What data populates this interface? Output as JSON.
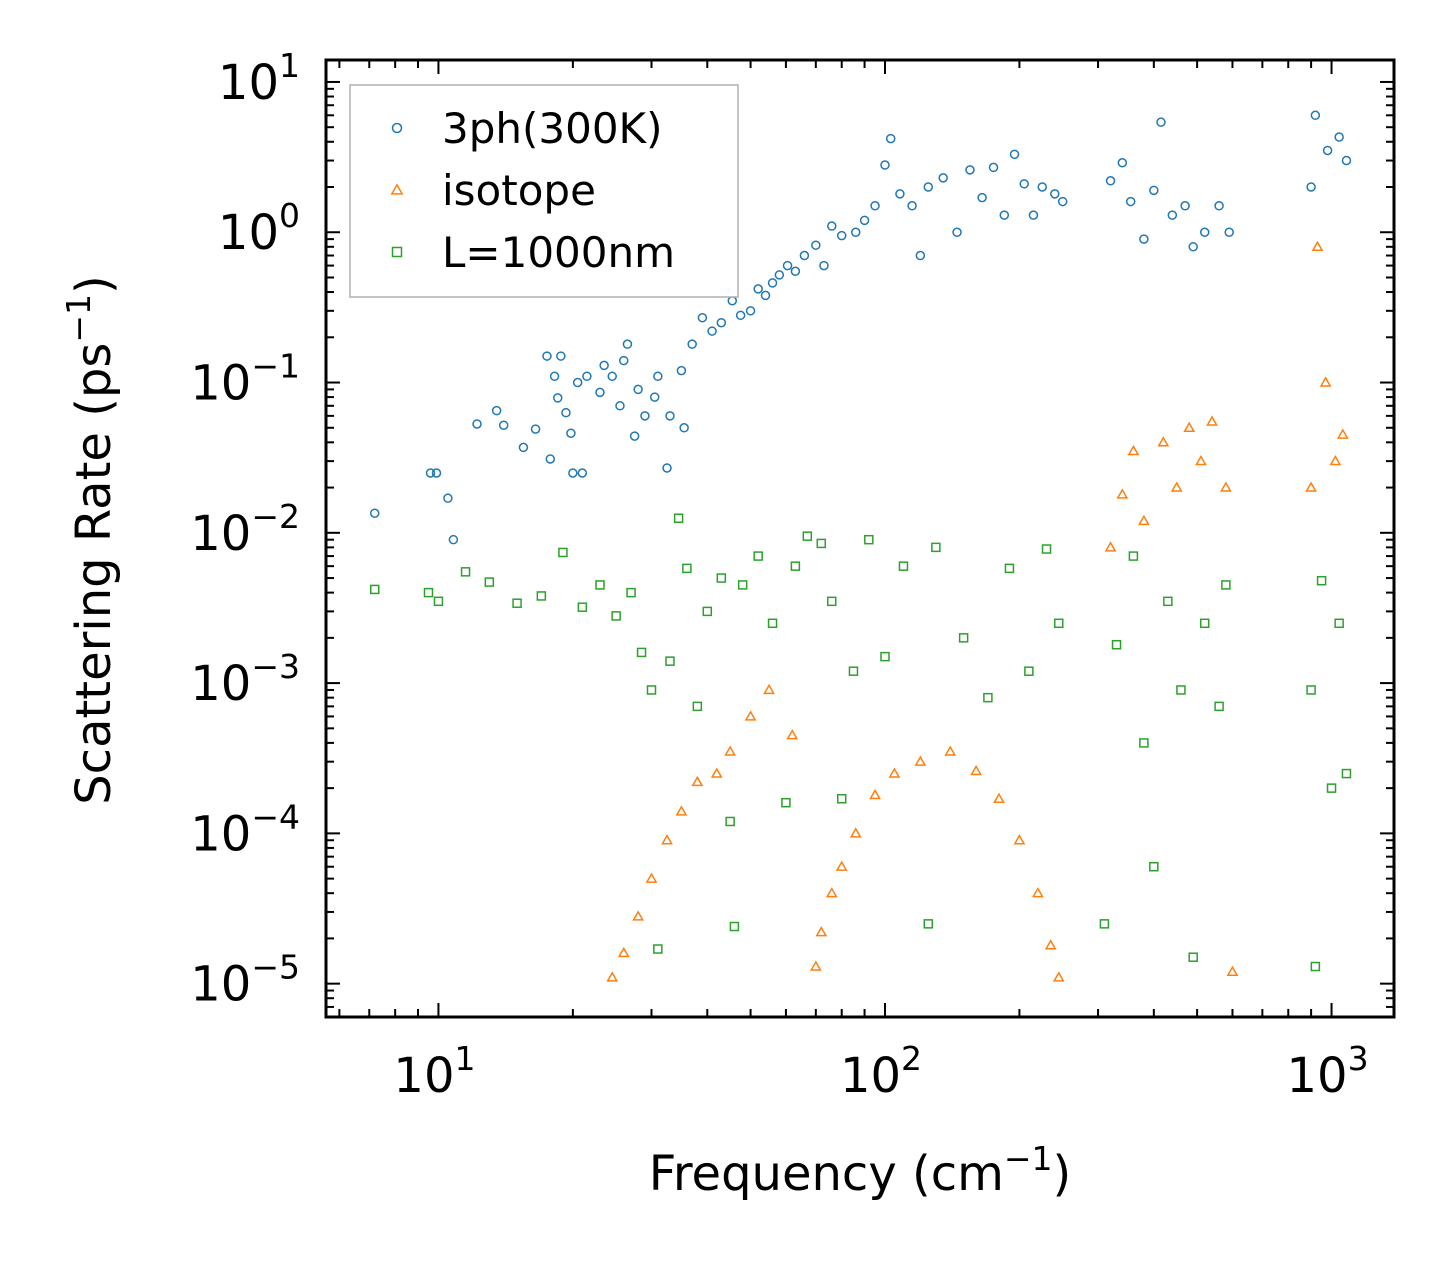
{
  "chart_data": {
    "type": "scatter",
    "xscale": "log",
    "yscale": "log",
    "xlim": [
      5.6,
      1380
    ],
    "ylim": [
      6e-06,
      14
    ],
    "xlabel": "Frequency (cm",
    "xlabel_sup": "−1",
    "xlabel_end": ")",
    "ylabel": "Scattering Rate (ps",
    "ylabel_sup": "−1",
    "ylabel_end": ")",
    "legend_position": "top-left",
    "x_ticks": [
      {
        "value": 10,
        "base": "10",
        "exp": "1"
      },
      {
        "value": 100,
        "base": "10",
        "exp": "2"
      },
      {
        "value": 1000,
        "base": "10",
        "exp": "3"
      }
    ],
    "y_ticks": [
      {
        "value": 10,
        "base": "10",
        "exp": "1"
      },
      {
        "value": 1,
        "base": "10",
        "exp": "0"
      },
      {
        "value": 0.1,
        "base": "10",
        "exp": "−1"
      },
      {
        "value": 0.01,
        "base": "10",
        "exp": "−2"
      },
      {
        "value": 0.001,
        "base": "10",
        "exp": "−3"
      },
      {
        "value": 0.0001,
        "base": "10",
        "exp": "−4"
      },
      {
        "value": 1e-05,
        "base": "10",
        "exp": "−5"
      }
    ],
    "series": [
      {
        "name": "3ph(300K)",
        "marker": "circle",
        "color": "#1f77b4",
        "points": [
          [
            7.2,
            0.0135
          ],
          [
            9.6,
            0.025
          ],
          [
            9.9,
            0.025
          ],
          [
            10.5,
            0.017
          ],
          [
            10.8,
            0.009
          ],
          [
            12.2,
            0.053
          ],
          [
            13.5,
            0.065
          ],
          [
            14.0,
            0.052
          ],
          [
            15.5,
            0.037
          ],
          [
            16.5,
            0.049
          ],
          [
            17.5,
            0.15
          ],
          [
            17.8,
            0.031
          ],
          [
            18.2,
            0.11
          ],
          [
            18.5,
            0.079
          ],
          [
            18.8,
            0.15
          ],
          [
            19.3,
            0.063
          ],
          [
            19.8,
            0.046
          ],
          [
            20.0,
            0.025
          ],
          [
            20.5,
            0.1
          ],
          [
            21.0,
            0.025
          ],
          [
            21.5,
            0.11
          ],
          [
            23.0,
            0.086
          ],
          [
            23.5,
            0.13
          ],
          [
            24.5,
            0.11
          ],
          [
            25.5,
            0.07
          ],
          [
            26.0,
            0.14
          ],
          [
            26.5,
            0.18
          ],
          [
            27.5,
            0.044
          ],
          [
            28.0,
            0.09
          ],
          [
            29.0,
            0.06
          ],
          [
            30.5,
            0.08
          ],
          [
            31.0,
            0.11
          ],
          [
            32.5,
            0.027
          ],
          [
            33.0,
            0.06
          ],
          [
            35.0,
            0.12
          ],
          [
            35.5,
            0.05
          ],
          [
            37.0,
            0.18
          ],
          [
            39.0,
            0.27
          ],
          [
            41.0,
            0.22
          ],
          [
            43.0,
            0.25
          ],
          [
            45.5,
            0.35
          ],
          [
            47.5,
            0.28
          ],
          [
            50.0,
            0.3
          ],
          [
            52.0,
            0.42
          ],
          [
            54.0,
            0.38
          ],
          [
            56.0,
            0.46
          ],
          [
            58.0,
            0.52
          ],
          [
            60.5,
            0.6
          ],
          [
            63.0,
            0.55
          ],
          [
            66.0,
            0.7
          ],
          [
            70.0,
            0.82
          ],
          [
            73.0,
            0.6
          ],
          [
            76.0,
            1.1
          ],
          [
            80.0,
            0.95
          ],
          [
            86.0,
            1.0
          ],
          [
            90.0,
            1.2
          ],
          [
            95.0,
            1.5
          ],
          [
            100.0,
            2.8
          ],
          [
            103.0,
            4.2
          ],
          [
            108.0,
            1.8
          ],
          [
            115.0,
            1.5
          ],
          [
            120.0,
            0.7
          ],
          [
            125.0,
            2.0
          ],
          [
            135.0,
            2.3
          ],
          [
            145.0,
            1.0
          ],
          [
            155.0,
            2.6
          ],
          [
            165.0,
            1.7
          ],
          [
            175.0,
            2.7
          ],
          [
            185.0,
            1.3
          ],
          [
            195.0,
            3.3
          ],
          [
            205.0,
            2.1
          ],
          [
            215.0,
            1.3
          ],
          [
            225.0,
            2.0
          ],
          [
            240.0,
            1.8
          ],
          [
            250.0,
            1.6
          ],
          [
            320.0,
            2.2
          ],
          [
            340.0,
            2.9
          ],
          [
            355.0,
            1.6
          ],
          [
            380.0,
            0.9
          ],
          [
            400.0,
            1.9
          ],
          [
            415.0,
            5.4
          ],
          [
            440.0,
            1.3
          ],
          [
            470.0,
            1.5
          ],
          [
            490.0,
            0.8
          ],
          [
            520.0,
            1.0
          ],
          [
            560.0,
            1.5
          ],
          [
            590.0,
            1.0
          ],
          [
            900.0,
            2.0
          ],
          [
            920.0,
            6.0
          ],
          [
            980.0,
            3.5
          ],
          [
            1040.0,
            4.3
          ],
          [
            1080.0,
            3.0
          ]
        ]
      },
      {
        "name": "isotope",
        "marker": "triangle",
        "color": "#ff7f0e",
        "points": [
          [
            24.5,
            1.1e-05
          ],
          [
            26.0,
            1.6e-05
          ],
          [
            28.0,
            2.8e-05
          ],
          [
            30.0,
            5e-05
          ],
          [
            32.5,
            9e-05
          ],
          [
            35.0,
            0.00014
          ],
          [
            38.0,
            0.00022
          ],
          [
            42.0,
            0.00025
          ],
          [
            45.0,
            0.00035
          ],
          [
            50.0,
            0.0006
          ],
          [
            55.0,
            0.0009
          ],
          [
            62.0,
            0.00045
          ],
          [
            70.0,
            1.3e-05
          ],
          [
            72.0,
            2.2e-05
          ],
          [
            76.0,
            4e-05
          ],
          [
            80.0,
            6e-05
          ],
          [
            86.0,
            0.0001
          ],
          [
            95.0,
            0.00018
          ],
          [
            105.0,
            0.00025
          ],
          [
            120.0,
            0.0003
          ],
          [
            140.0,
            0.00035
          ],
          [
            160.0,
            0.00026
          ],
          [
            180.0,
            0.00017
          ],
          [
            200.0,
            9e-05
          ],
          [
            220.0,
            4e-05
          ],
          [
            235.0,
            1.8e-05
          ],
          [
            245.0,
            1.1e-05
          ],
          [
            320.0,
            0.008
          ],
          [
            340.0,
            0.018
          ],
          [
            360.0,
            0.035
          ],
          [
            380.0,
            0.012
          ],
          [
            420.0,
            0.04
          ],
          [
            450.0,
            0.02
          ],
          [
            480.0,
            0.05
          ],
          [
            510.0,
            0.03
          ],
          [
            540.0,
            0.055
          ],
          [
            580.0,
            0.02
          ],
          [
            600.0,
            1.2e-05
          ],
          [
            900.0,
            0.02
          ],
          [
            930.0,
            0.8
          ],
          [
            970.0,
            0.1
          ],
          [
            1020.0,
            0.03
          ],
          [
            1060.0,
            0.045
          ]
        ]
      },
      {
        "name": "L=1000nm",
        "marker": "square",
        "color": "#2ca02c",
        "points": [
          [
            7.2,
            0.0042
          ],
          [
            9.5,
            0.004
          ],
          [
            10.0,
            0.0035
          ],
          [
            11.5,
            0.0055
          ],
          [
            13.0,
            0.0047
          ],
          [
            15.0,
            0.0034
          ],
          [
            17.0,
            0.0038
          ],
          [
            19.0,
            0.0074
          ],
          [
            21.0,
            0.0032
          ],
          [
            23.0,
            0.0045
          ],
          [
            25.0,
            0.0028
          ],
          [
            27.0,
            0.004
          ],
          [
            28.5,
            0.0016
          ],
          [
            30.0,
            0.0009
          ],
          [
            31.0,
            1.7e-05
          ],
          [
            33.0,
            0.0014
          ],
          [
            34.5,
            0.0125
          ],
          [
            36.0,
            0.0058
          ],
          [
            38.0,
            0.0007
          ],
          [
            40.0,
            0.003
          ],
          [
            43.0,
            0.005
          ],
          [
            45.0,
            0.00012
          ],
          [
            46.0,
            2.4e-05
          ],
          [
            48.0,
            0.0045
          ],
          [
            52.0,
            0.007
          ],
          [
            56.0,
            0.0025
          ],
          [
            60.0,
            0.00016
          ],
          [
            63.0,
            0.006
          ],
          [
            67.0,
            0.0095
          ],
          [
            72.0,
            0.0085
          ],
          [
            76.0,
            0.0035
          ],
          [
            80.0,
            0.00017
          ],
          [
            85.0,
            0.0012
          ],
          [
            92.0,
            0.009
          ],
          [
            100.0,
            0.0015
          ],
          [
            110.0,
            0.006
          ],
          [
            125.0,
            2.5e-05
          ],
          [
            130.0,
            0.008
          ],
          [
            150.0,
            0.002
          ],
          [
            170.0,
            0.0008
          ],
          [
            190.0,
            0.0058
          ],
          [
            210.0,
            0.0012
          ],
          [
            230.0,
            0.0078
          ],
          [
            245.0,
            0.0025
          ],
          [
            310.0,
            2.5e-05
          ],
          [
            330.0,
            0.0018
          ],
          [
            360.0,
            0.007
          ],
          [
            380.0,
            0.0004
          ],
          [
            400.0,
            6e-05
          ],
          [
            430.0,
            0.0035
          ],
          [
            460.0,
            0.0009
          ],
          [
            490.0,
            1.5e-05
          ],
          [
            520.0,
            0.0025
          ],
          [
            560.0,
            0.0007
          ],
          [
            580.0,
            0.0045
          ],
          [
            900.0,
            0.0009
          ],
          [
            920.0,
            1.3e-05
          ],
          [
            950.0,
            0.0048
          ],
          [
            1000.0,
            0.0002
          ],
          [
            1040.0,
            0.0025
          ],
          [
            1080.0,
            0.00025
          ]
        ]
      }
    ]
  }
}
